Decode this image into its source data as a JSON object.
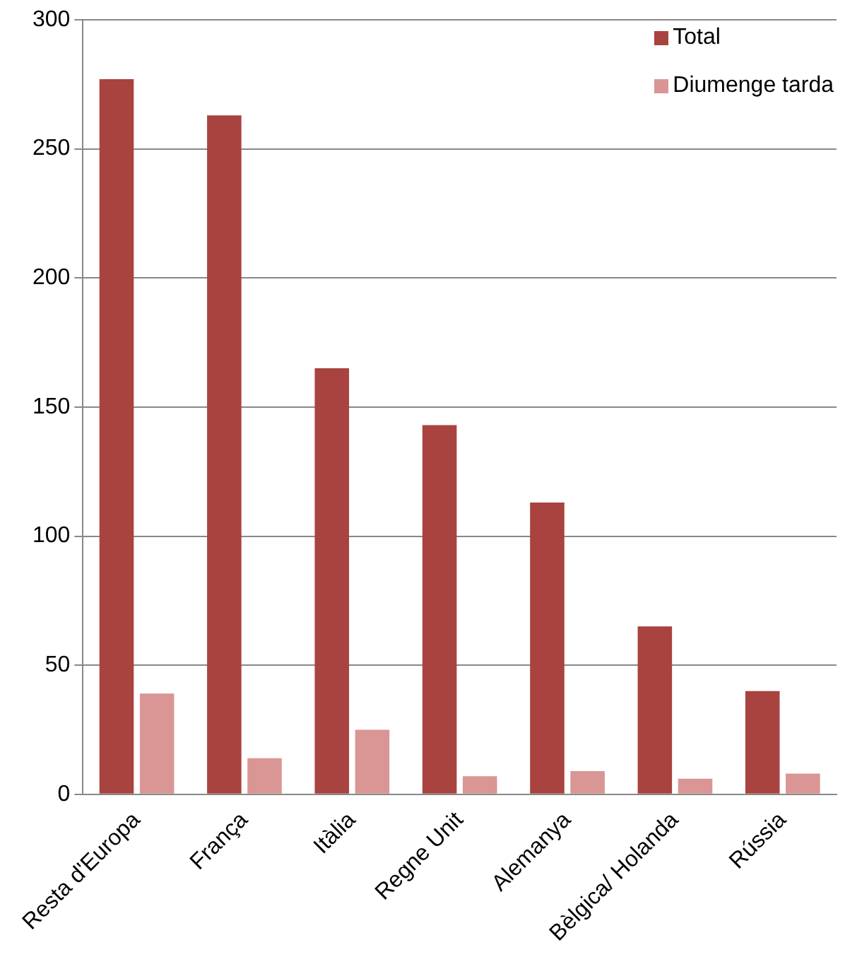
{
  "chart_data": {
    "type": "bar",
    "categories": [
      "Resta d'Europa",
      "França",
      "Itàlia",
      "Regne Unit",
      "Alemanya",
      "Bèlgica/ Holanda",
      "Rússia"
    ],
    "series": [
      {
        "name": "Total",
        "color": "#a8433f",
        "values": [
          277,
          263,
          165,
          143,
          113,
          65,
          40
        ]
      },
      {
        "name": "Diumenge tarda",
        "color": "#d99694",
        "values": [
          39,
          14,
          25,
          7,
          9,
          6,
          8
        ]
      }
    ],
    "ylim": [
      0,
      300
    ],
    "yticks": [
      0,
      50,
      100,
      150,
      200,
      250,
      300
    ],
    "grid": "y",
    "legend": "top right"
  }
}
